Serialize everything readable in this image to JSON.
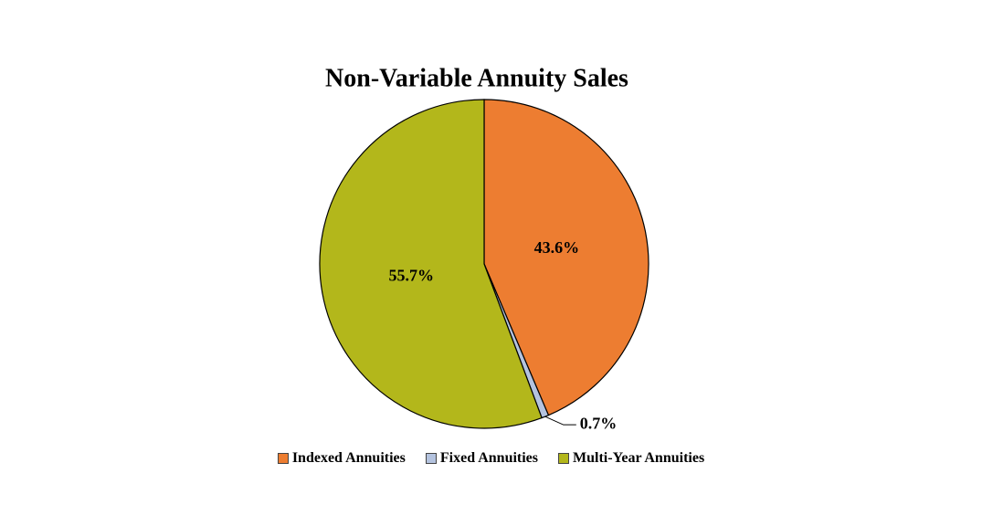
{
  "chart_data": {
    "type": "pie",
    "title": "Non-Variable Annuity Sales",
    "categories": [
      "Indexed Annuities",
      "Fixed Annuities",
      "Multi-Year Annuities"
    ],
    "values": [
      43.6,
      0.7,
      55.7
    ],
    "value_labels": [
      "43.6%",
      "0.7%",
      "55.7%"
    ],
    "colors": [
      "#ed7d31",
      "#b4c3df",
      "#b3b71b"
    ],
    "legend": "bottom"
  }
}
